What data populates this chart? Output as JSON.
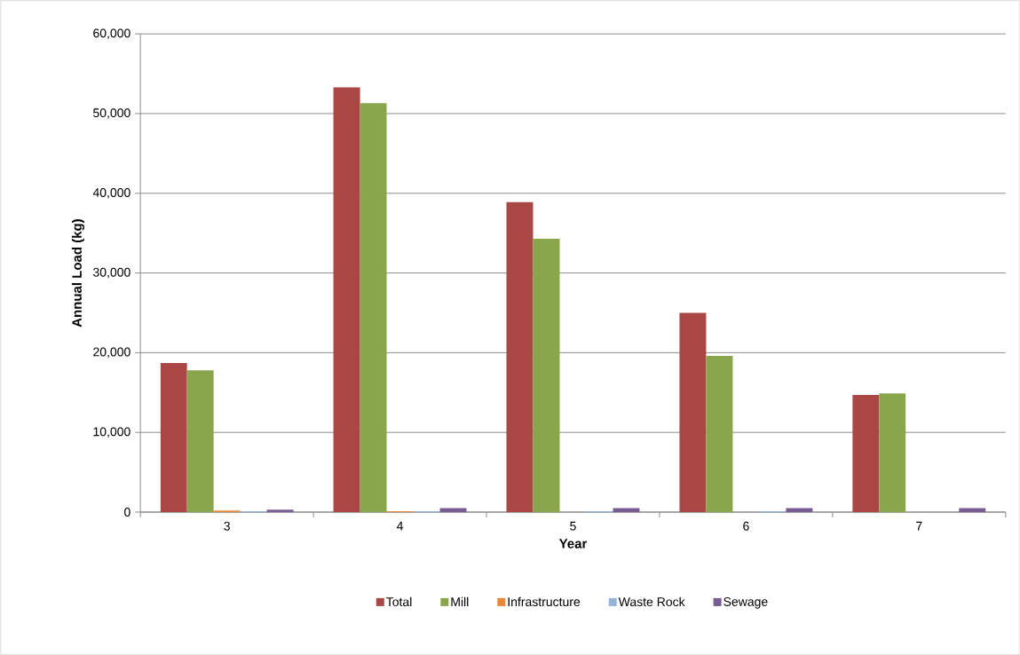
{
  "chart_data": {
    "type": "bar",
    "xlabel": "Year",
    "ylabel": "Annual Load (kg)",
    "categories": [
      "3",
      "4",
      "5",
      "6",
      "7"
    ],
    "series": [
      {
        "name": "Total",
        "color": "#a94745",
        "values": [
          18700,
          53300,
          38900,
          25000,
          14700
        ]
      },
      {
        "name": "Mill",
        "color": "#8aa64d",
        "values": [
          17800,
          51300,
          34300,
          19600,
          14900
        ]
      },
      {
        "name": "Infrastructure",
        "color": "#e8883a",
        "values": [
          200,
          100,
          0,
          0,
          0
        ]
      },
      {
        "name": "Waste Rock",
        "color": "#95b3d7",
        "values": [
          100,
          100,
          100,
          100,
          0
        ]
      },
      {
        "name": "Sewage",
        "color": "#7a5c94",
        "values": [
          300,
          500,
          500,
          500,
          500
        ]
      }
    ],
    "ylim": [
      0,
      60000
    ],
    "yticks": [
      0,
      {
        "value": 10000,
        "label": "10,000"
      },
      {
        "value": 20000,
        "label": "20,000"
      },
      {
        "value": 30000,
        "label": "30,000"
      },
      {
        "value": 40000,
        "label": "40,000"
      },
      {
        "value": 50000,
        "label": "50,000"
      },
      {
        "value": 60000,
        "label": "60,000"
      }
    ],
    "grid": "y",
    "legend": "bottom"
  }
}
